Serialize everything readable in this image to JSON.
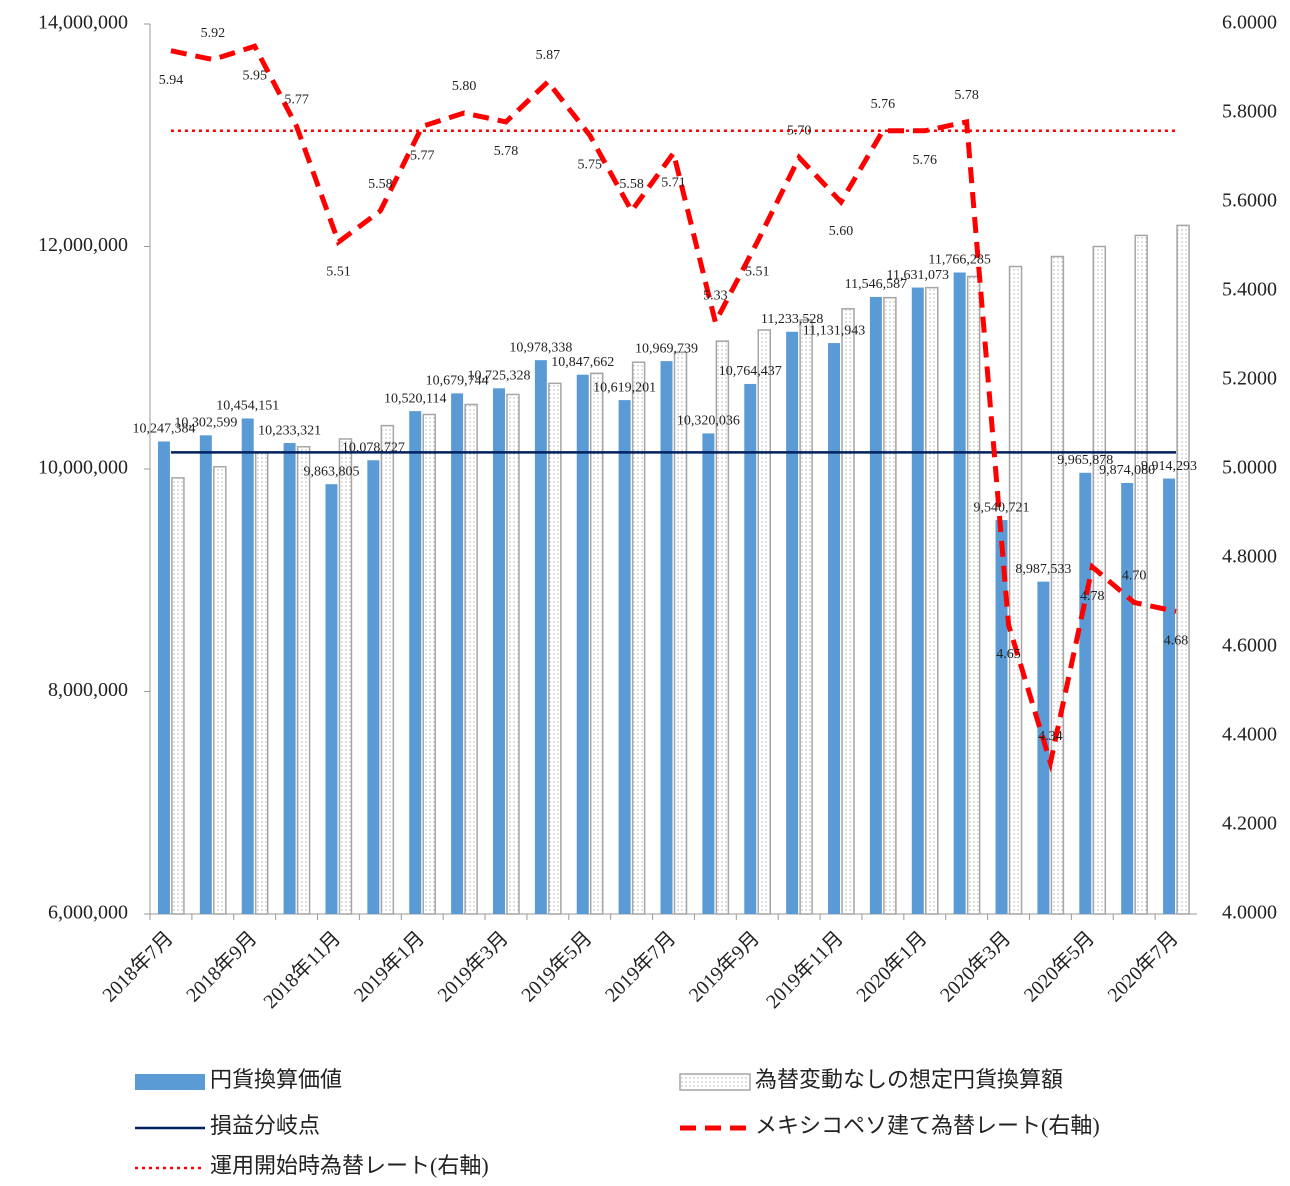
{
  "chart_data": {
    "type": "bar",
    "categories": [
      "2018年7月",
      null,
      "2018年9月",
      null,
      "2018年11月",
      null,
      "2019年1月",
      null,
      "2019年3月",
      null,
      "2019年5月",
      null,
      "2019年7月",
      null,
      "2019年9月",
      null,
      "2019年11月",
      null,
      "2020年1月",
      null,
      "2020年3月",
      null,
      "2020年5月",
      null,
      "2020年7月"
    ],
    "ylim": [
      6000000,
      14000000
    ],
    "yticks": [
      {
        "value": 6000000,
        "label": "6,000,000"
      },
      {
        "value": 8000000,
        "label": "8,000,000"
      },
      {
        "value": 10000000,
        "label": "10,000,000"
      },
      {
        "value": 12000000,
        "label": "12,000,000"
      },
      {
        "value": 14000000,
        "label": "14,000,000"
      }
    ],
    "y2lim": [
      4,
      6
    ],
    "y2ticks": [
      {
        "value": 4,
        "label": "4.0000"
      },
      {
        "value": 4.2,
        "label": "4.2000"
      },
      {
        "value": 4.4,
        "label": "4.4000"
      },
      {
        "value": 4.6,
        "label": "4.6000"
      },
      {
        "value": 4.8,
        "label": "4.8000"
      },
      {
        "value": 5,
        "label": "5.0000"
      },
      {
        "value": 5.2,
        "label": "5.2000"
      },
      {
        "value": 5.4,
        "label": "5.4000"
      },
      {
        "value": 5.6,
        "label": "5.6000"
      },
      {
        "value": 5.8,
        "label": "5.8000"
      },
      {
        "value": 6,
        "label": "6.0000"
      }
    ],
    "grid": false,
    "legend": "bottom",
    "series": [
      {
        "name": "円貨換算価値",
        "type": "bar",
        "color": "#5b9bd5",
        "values": [
          10247384,
          10302599,
          10454151,
          10233321,
          9863805,
          10078727,
          10520114,
          10679744,
          10725328,
          10978338,
          10847662,
          10619201,
          10969739,
          10320036,
          10764437,
          11233528,
          11131943,
          11546587,
          11631073,
          11766285,
          9540721,
          8987533,
          9965878,
          9874080,
          9914293
        ],
        "value_labels": [
          "10,247,384",
          "10,302,599",
          "10,454,151",
          "10,233,321",
          "9,863,805",
          "10,078,727",
          "10,520,114",
          "10,679,744",
          "10,725,328",
          "10,978,338",
          "10,847,662",
          "10,619,201",
          "10,969,739",
          "10,320,036",
          "10,764,437",
          "11,233,528",
          "11,131,943",
          "11,546,587",
          "11,631,073",
          "11,766,285",
          "9,540,721",
          "8,987,533",
          "9,965,878",
          "9,874,080",
          "9,914,293"
        ]
      },
      {
        "name": "為替変動なしの想定円貨換算額",
        "type": "bar",
        "color": "#a6a6a6",
        "pattern": "dotted",
        "values": [
          9920000,
          10020000,
          10150000,
          10200000,
          10270000,
          10390000,
          10490000,
          10580000,
          10670000,
          10770000,
          10860000,
          10960000,
          11050000,
          11150000,
          11250000,
          11340000,
          11440000,
          11540000,
          11630000,
          11730000,
          11820000,
          11910000,
          12000000,
          12100000,
          12190000
        ]
      },
      {
        "name": "損益分岐点",
        "type": "line",
        "color": "#002060",
        "dash": "solid",
        "values": [
          10150000,
          10150000,
          10150000,
          10150000,
          10150000,
          10150000,
          10150000,
          10150000,
          10150000,
          10150000,
          10150000,
          10150000,
          10150000,
          10150000,
          10150000,
          10150000,
          10150000,
          10150000,
          10150000,
          10150000,
          10150000,
          10150000,
          10150000,
          10150000,
          10150000
        ]
      },
      {
        "name": "メキシコペソ建て為替レート(右軸)",
        "type": "line",
        "color": "#ff0000",
        "dash": "dashed",
        "axis": "y2",
        "values": [
          5.94,
          5.92,
          5.95,
          5.77,
          5.51,
          5.58,
          5.77,
          5.8,
          5.78,
          5.87,
          5.75,
          5.58,
          5.71,
          5.33,
          5.51,
          5.7,
          5.6,
          5.76,
          5.76,
          5.78,
          4.65,
          4.34,
          4.78,
          4.7,
          4.68
        ],
        "value_labels": [
          "5.94",
          "5.92",
          "5.95",
          "5.77",
          "5.51",
          "5.58",
          "5.77",
          "5.80",
          "5.78",
          "5.87",
          "5.75",
          "5.58",
          "5.71",
          "5.33",
          "5.51",
          "5.70",
          "5.60",
          "5.76",
          "5.76",
          "5.78",
          "4.65",
          "4.34",
          "4.78",
          "4.70",
          "4.68"
        ]
      },
      {
        "name": "運用開始時為替レート(右軸)",
        "type": "line",
        "color": "#ff0000",
        "dash": "dotted",
        "axis": "y2",
        "values": [
          5.76,
          5.76,
          5.76,
          5.76,
          5.76,
          5.76,
          5.76,
          5.76,
          5.76,
          5.76,
          5.76,
          5.76,
          5.76,
          5.76,
          5.76,
          5.76,
          5.76,
          5.76,
          5.76,
          5.76,
          5.76,
          5.76,
          5.76,
          5.76,
          5.76
        ]
      }
    ]
  }
}
